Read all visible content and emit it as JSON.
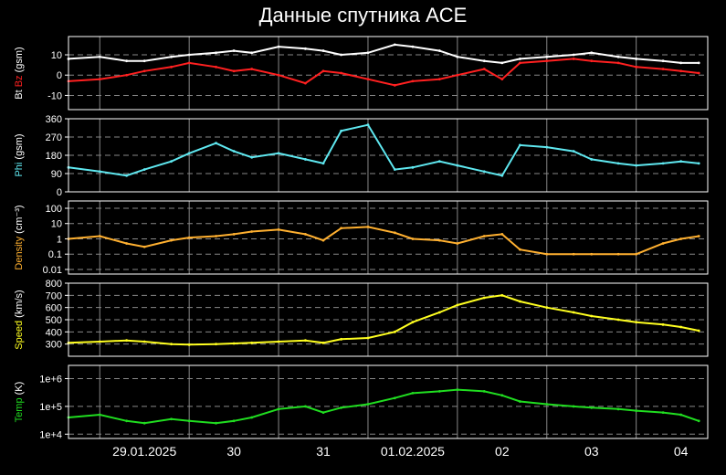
{
  "title": "Данные спутника ACE",
  "colors": {
    "background": "#000000",
    "frame": "#ffffff",
    "grid": "#888888",
    "bt": "#ffffff",
    "bz": "#ff2020",
    "phi": "#5fe8f0",
    "density": "#ffb030",
    "speed": "#ffff20",
    "temp": "#20dd20"
  },
  "chart_data": {
    "type": "scatter",
    "x_axis": {
      "unit": "day",
      "range": [
        -0.85,
        6.3
      ],
      "ticks": [
        {
          "label": "29.01.2025",
          "x": 0
        },
        {
          "label": "30",
          "x": 1
        },
        {
          "label": "31",
          "x": 2
        },
        {
          "label": "01.02.2025",
          "x": 3
        },
        {
          "label": "02",
          "x": 4
        },
        {
          "label": "03",
          "x": 5
        },
        {
          "label": "04",
          "x": 6
        }
      ],
      "grid_days": [
        -0.5,
        0.5,
        1.5,
        2.5,
        3.5,
        4.5,
        5.5
      ]
    },
    "panels": [
      {
        "id": "bfield",
        "ylabel_parts": [
          {
            "text": "Bt",
            "color_key": "bt"
          },
          {
            "text": " Bz",
            "color_key": "bz"
          },
          {
            "text": " (gsm)",
            "color_key": "bt"
          }
        ],
        "scale": "linear",
        "ylim": [
          -17,
          19
        ],
        "yticks": [
          {
            "v": 10,
            "label": "10"
          },
          {
            "v": 0,
            "label": "0"
          },
          {
            "v": -10,
            "label": "-10"
          }
        ],
        "series": [
          {
            "name": "Bt",
            "color_key": "bt",
            "x": [
              -0.85,
              -0.5,
              -0.2,
              0.0,
              0.3,
              0.5,
              0.8,
              1.0,
              1.2,
              1.5,
              1.8,
              2.0,
              2.2,
              2.5,
              2.8,
              3.0,
              3.3,
              3.5,
              3.8,
              4.0,
              4.2,
              4.5,
              4.8,
              5.0,
              5.3,
              5.5,
              5.8,
              6.0,
              6.2
            ],
            "y": [
              8,
              9,
              7,
              7,
              9,
              10,
              11,
              12,
              11,
              14,
              13,
              12,
              10,
              11,
              15,
              14,
              12,
              9,
              7,
              6,
              8,
              9,
              10,
              11,
              9,
              8,
              7,
              6,
              6
            ]
          },
          {
            "name": "Bz",
            "color_key": "bz",
            "x": [
              -0.85,
              -0.5,
              -0.2,
              0.0,
              0.3,
              0.5,
              0.8,
              1.0,
              1.2,
              1.5,
              1.8,
              2.0,
              2.2,
              2.5,
              2.8,
              3.0,
              3.3,
              3.5,
              3.8,
              4.0,
              4.2,
              4.5,
              4.8,
              5.0,
              5.3,
              5.5,
              5.8,
              6.0,
              6.2
            ],
            "y": [
              -3,
              -2,
              0,
              2,
              4,
              6,
              4,
              2,
              3,
              0,
              -4,
              2,
              1,
              -2,
              -5,
              -3,
              -2,
              0,
              3,
              -2,
              6,
              7,
              8,
              7,
              6,
              4,
              3,
              2,
              1
            ]
          }
        ]
      },
      {
        "id": "phi",
        "ylabel_parts": [
          {
            "text": "Phi",
            "color_key": "phi"
          },
          {
            "text": " (gsm)",
            "color_key": "bt"
          }
        ],
        "scale": "linear",
        "ylim": [
          0,
          360
        ],
        "yticks": [
          {
            "v": 360,
            "label": "360"
          },
          {
            "v": 270,
            "label": "270"
          },
          {
            "v": 180,
            "label": "180"
          },
          {
            "v": 90,
            "label": "90"
          },
          {
            "v": 0,
            "label": "0"
          }
        ],
        "series": [
          {
            "name": "Phi",
            "color_key": "phi",
            "x": [
              -0.85,
              -0.5,
              -0.2,
              0.0,
              0.3,
              0.5,
              0.8,
              1.0,
              1.2,
              1.5,
              1.8,
              2.0,
              2.2,
              2.5,
              2.8,
              3.0,
              3.3,
              3.5,
              3.8,
              4.0,
              4.2,
              4.5,
              4.8,
              5.0,
              5.3,
              5.5,
              5.8,
              6.0,
              6.2
            ],
            "y": [
              120,
              100,
              80,
              110,
              150,
              190,
              240,
              200,
              170,
              190,
              160,
              140,
              300,
              330,
              110,
              120,
              150,
              130,
              100,
              80,
              230,
              220,
              200,
              160,
              140,
              130,
              140,
              150,
              140
            ]
          }
        ]
      },
      {
        "id": "density",
        "ylabel_parts": [
          {
            "text": "Density",
            "color_key": "density"
          },
          {
            "text": " (cm⁻³)",
            "color_key": "bt"
          }
        ],
        "scale": "log",
        "ylim": [
          0.005,
          300
        ],
        "yticks": [
          {
            "v": 100,
            "label": "100"
          },
          {
            "v": 10,
            "label": "10"
          },
          {
            "v": 1,
            "label": "1"
          },
          {
            "v": 0.1,
            "label": "0.1"
          },
          {
            "v": 0.01,
            "label": "0.01"
          }
        ],
        "series": [
          {
            "name": "Density",
            "color_key": "density",
            "x": [
              -0.85,
              -0.5,
              -0.2,
              0.0,
              0.3,
              0.5,
              0.8,
              1.0,
              1.2,
              1.5,
              1.8,
              2.0,
              2.2,
              2.5,
              2.8,
              3.0,
              3.3,
              3.5,
              3.8,
              4.0,
              4.2,
              4.5,
              4.8,
              5.0,
              5.3,
              5.5,
              5.8,
              6.0,
              6.2
            ],
            "y": [
              1,
              1.5,
              0.5,
              0.3,
              0.8,
              1.2,
              1.5,
              2,
              3,
              4,
              2,
              0.8,
              5,
              6,
              2.5,
              1,
              0.8,
              0.5,
              1.5,
              2,
              0.2,
              0.1,
              0.1,
              0.1,
              0.1,
              0.1,
              0.5,
              1,
              1.5
            ]
          }
        ]
      },
      {
        "id": "speed",
        "ylabel_parts": [
          {
            "text": "Speed",
            "color_key": "speed"
          },
          {
            "text": " (km/s)",
            "color_key": "bt"
          }
        ],
        "scale": "linear",
        "ylim": [
          200,
          800
        ],
        "yticks": [
          {
            "v": 800,
            "label": "800"
          },
          {
            "v": 700,
            "label": "700"
          },
          {
            "v": 600,
            "label": "600"
          },
          {
            "v": 500,
            "label": "500"
          },
          {
            "v": 400,
            "label": "400"
          },
          {
            "v": 300,
            "label": "300"
          }
        ],
        "series": [
          {
            "name": "Speed",
            "color_key": "speed",
            "x": [
              -0.85,
              -0.5,
              -0.2,
              0.0,
              0.3,
              0.5,
              0.8,
              1.0,
              1.2,
              1.5,
              1.8,
              2.0,
              2.2,
              2.5,
              2.8,
              3.0,
              3.3,
              3.5,
              3.8,
              4.0,
              4.2,
              4.5,
              4.8,
              5.0,
              5.3,
              5.5,
              5.8,
              6.0,
              6.2
            ],
            "y": [
              310,
              320,
              330,
              320,
              300,
              295,
              300,
              305,
              310,
              320,
              330,
              310,
              340,
              350,
              400,
              480,
              560,
              620,
              680,
              700,
              650,
              600,
              560,
              530,
              500,
              480,
              460,
              440,
              410
            ]
          }
        ]
      },
      {
        "id": "temp",
        "ylabel_parts": [
          {
            "text": "Temp",
            "color_key": "temp"
          },
          {
            "text": " (K)",
            "color_key": "bt"
          }
        ],
        "scale": "log",
        "ylim": [
          7000,
          3000000
        ],
        "yticks": [
          {
            "v": 1000000,
            "label": "1e+6"
          },
          {
            "v": 100000,
            "label": "1e+5"
          },
          {
            "v": 10000,
            "label": "1e+4"
          }
        ],
        "series": [
          {
            "name": "Temp",
            "color_key": "temp",
            "x": [
              -0.85,
              -0.5,
              -0.2,
              0.0,
              0.3,
              0.5,
              0.8,
              1.0,
              1.2,
              1.5,
              1.8,
              2.0,
              2.2,
              2.5,
              2.8,
              3.0,
              3.3,
              3.5,
              3.8,
              4.0,
              4.2,
              4.5,
              4.8,
              5.0,
              5.3,
              5.5,
              5.8,
              6.0,
              6.2
            ],
            "y": [
              40000,
              50000,
              30000,
              25000,
              35000,
              30000,
              25000,
              30000,
              40000,
              80000,
              100000,
              60000,
              90000,
              120000,
              200000,
              300000,
              350000,
              400000,
              350000,
              250000,
              150000,
              120000,
              100000,
              90000,
              80000,
              70000,
              60000,
              50000,
              30000
            ]
          }
        ]
      }
    ]
  }
}
